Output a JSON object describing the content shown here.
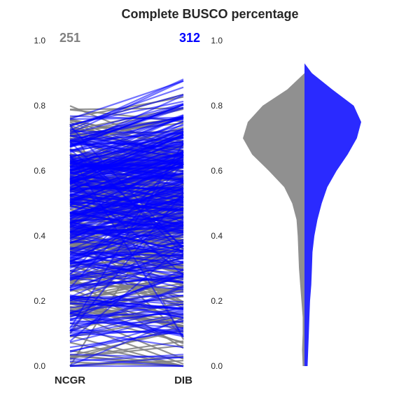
{
  "chart_data": {
    "type": "slope-violin",
    "title": "Complete BUSCO percentage",
    "categories": [
      "NCGR",
      "DIB"
    ],
    "ylim": [
      0,
      1
    ],
    "yticks": [
      "0.0",
      "0.2",
      "0.4",
      "0.6",
      "0.8",
      "1.0"
    ],
    "grid": false,
    "colors": {
      "NCGR": "#808080",
      "DIB": "#0000ff",
      "violin_left": "#909090",
      "violin_right": "#2a2aff"
    },
    "counts": {
      "NCGR": "251",
      "DIB": "312"
    },
    "slope_series": [
      {
        "name": "NCGR",
        "color": "#808080",
        "n": 251,
        "ncgr_range": [
          0.0,
          0.9
        ],
        "dib_range": [
          0.0,
          0.9
        ],
        "ncgr_mode": 0.72,
        "dib_mode": 0.7
      },
      {
        "name": "DIB",
        "color": "#0000ff",
        "n": 312,
        "ncgr_range": [
          0.0,
          0.89
        ],
        "dib_range": [
          0.0,
          0.93
        ],
        "ncgr_mode": 0.7,
        "dib_mode": 0.74
      }
    ],
    "violin": {
      "left": {
        "name": "NCGR",
        "y": [
          0.0,
          0.05,
          0.1,
          0.15,
          0.2,
          0.25,
          0.3,
          0.35,
          0.4,
          0.45,
          0.5,
          0.55,
          0.6,
          0.65,
          0.7,
          0.75,
          0.8,
          0.85,
          0.9
        ],
        "width": [
          0.03,
          0.04,
          0.03,
          0.03,
          0.05,
          0.07,
          0.09,
          0.1,
          0.11,
          0.13,
          0.2,
          0.33,
          0.58,
          0.85,
          1.0,
          0.92,
          0.68,
          0.28,
          0.0
        ]
      },
      "right": {
        "name": "DIB",
        "y": [
          0.0,
          0.05,
          0.1,
          0.15,
          0.2,
          0.25,
          0.3,
          0.35,
          0.4,
          0.45,
          0.5,
          0.55,
          0.6,
          0.65,
          0.7,
          0.75,
          0.8,
          0.85,
          0.9,
          0.93
        ],
        "width": [
          0.05,
          0.06,
          0.07,
          0.08,
          0.09,
          0.11,
          0.12,
          0.13,
          0.16,
          0.21,
          0.28,
          0.37,
          0.52,
          0.7,
          0.85,
          0.92,
          0.8,
          0.45,
          0.12,
          0.0
        ]
      }
    }
  }
}
